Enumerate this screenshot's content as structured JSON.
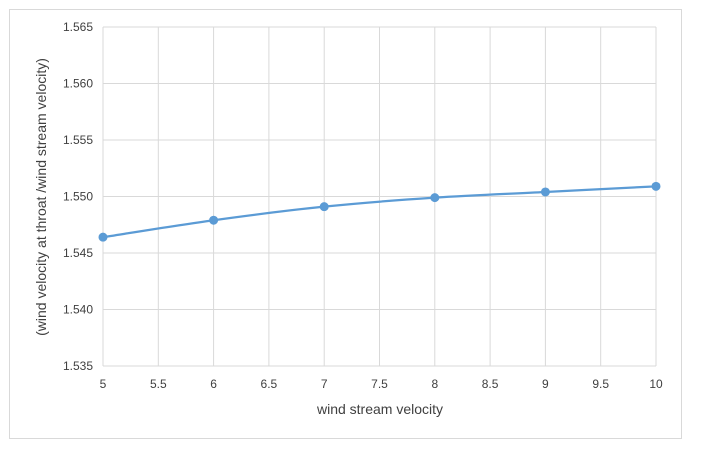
{
  "chart_data": {
    "type": "line",
    "title": "",
    "xlabel": "wind stream velocity",
    "ylabel": "(wind velocity at throat /wind  stream  velocity)",
    "xlim": [
      5,
      10
    ],
    "ylim": [
      1.535,
      1.565
    ],
    "x_ticks": [
      "5",
      "5.5",
      "6",
      "6.5",
      "7",
      "7.5",
      "8",
      "8.5",
      "9",
      "9.5",
      "10"
    ],
    "y_ticks": [
      "1.535",
      "1.540",
      "1.545",
      "1.550",
      "1.555",
      "1.560",
      "1.565"
    ],
    "grid": true,
    "legend": "none",
    "series": [
      {
        "x": [
          5,
          6,
          7,
          8,
          9,
          10
        ],
        "values": [
          1.5464,
          1.5479,
          1.5491,
          1.5499,
          1.5504,
          1.5509
        ],
        "color": "#5b9bd5",
        "smooth": true,
        "markers": true
      }
    ]
  }
}
